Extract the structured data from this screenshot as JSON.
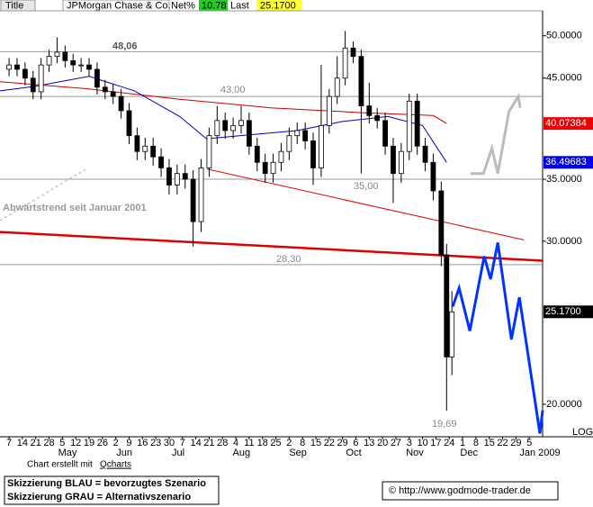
{
  "header": {
    "tab": "Title",
    "name": "JPMorgan Chase & Co.",
    "net_label": "Net%",
    "net_value": "10.78",
    "last_label": "Last",
    "last_value": "25.1700"
  },
  "chart_data": {
    "type": "candlestick",
    "log_scale": true,
    "xlim": [
      -3.4,
      200
    ],
    "ylim": [
      18.45,
      53.2
    ],
    "yticks": [
      {
        "value": 50,
        "label": "50.0000"
      },
      {
        "value": 45,
        "label": "45.0000"
      },
      {
        "value": 35,
        "label": "35.0000"
      },
      {
        "value": 30,
        "label": "30.0000"
      },
      {
        "value": 20,
        "label": "20.0000"
      }
    ],
    "xticks": [
      {
        "value": 0,
        "label": "7"
      },
      {
        "value": 5,
        "label": "14"
      },
      {
        "value": 10,
        "label": "21"
      },
      {
        "value": 15,
        "label": "28"
      },
      {
        "value": 20,
        "label": "5"
      },
      {
        "value": 25,
        "label": "12"
      },
      {
        "value": 30,
        "label": "19"
      },
      {
        "value": 35,
        "label": "26"
      },
      {
        "value": 40,
        "label": "2"
      },
      {
        "value": 45,
        "label": "9"
      },
      {
        "value": 50,
        "label": "16"
      },
      {
        "value": 55,
        "label": "23"
      },
      {
        "value": 60,
        "label": "30"
      },
      {
        "value": 65,
        "label": "7"
      },
      {
        "value": 70,
        "label": "14"
      },
      {
        "value": 75,
        "label": "21"
      },
      {
        "value": 80,
        "label": "28"
      },
      {
        "value": 85,
        "label": "4"
      },
      {
        "value": 90,
        "label": "11"
      },
      {
        "value": 95,
        "label": "18"
      },
      {
        "value": 100,
        "label": "25"
      },
      {
        "value": 105,
        "label": "2"
      },
      {
        "value": 110,
        "label": "8"
      },
      {
        "value": 115,
        "label": "15"
      },
      {
        "value": 120,
        "label": "22"
      },
      {
        "value": 125,
        "label": "29"
      },
      {
        "value": 130,
        "label": "6"
      },
      {
        "value": 135,
        "label": "13"
      },
      {
        "value": 140,
        "label": "20"
      },
      {
        "value": 145,
        "label": "27"
      },
      {
        "value": 150,
        "label": "3"
      },
      {
        "value": 155,
        "label": "10"
      },
      {
        "value": 160,
        "label": "17"
      },
      {
        "value": 165,
        "label": "24"
      },
      {
        "value": 170,
        "label": "1"
      },
      {
        "value": 175,
        "label": "8"
      },
      {
        "value": 180,
        "label": "15"
      },
      {
        "value": 185,
        "label": "22"
      },
      {
        "value": 190,
        "label": "29"
      },
      {
        "value": 195,
        "label": "5"
      }
    ],
    "month_labels": [
      {
        "value": 21.9,
        "label": "May"
      },
      {
        "value": 43.2,
        "label": "Jun"
      },
      {
        "value": 63.4,
        "label": "Jul"
      },
      {
        "value": 87.1,
        "label": "Aug"
      },
      {
        "value": 108.3,
        "label": "Sep"
      },
      {
        "value": 129.2,
        "label": "Oct"
      },
      {
        "value": 152.1,
        "label": "Nov"
      },
      {
        "value": 172.4,
        "label": "Dec"
      },
      {
        "value": 199,
        "label": "Jan 2009"
      }
    ],
    "candles": {
      "x": [
        0,
        3,
        6,
        9,
        12,
        15,
        18,
        21,
        24,
        27,
        30,
        33,
        36,
        39,
        42,
        45,
        48,
        51,
        54,
        57,
        60,
        63,
        66,
        69,
        72,
        75,
        78,
        81,
        84,
        87,
        90,
        93,
        96,
        99,
        102,
        105,
        108,
        111,
        114,
        117,
        120,
        123,
        126,
        129,
        132,
        135,
        138,
        141,
        144,
        147,
        150,
        153,
        156,
        159,
        162,
        164,
        166
      ],
      "open": [
        46.0,
        46.5,
        46.0,
        45.0,
        43.5,
        46.5,
        47.5,
        48.0,
        47.0,
        46.5,
        46.5,
        46.0,
        44.0,
        43.5,
        43.0,
        41.5,
        39.0,
        37.5,
        38.0,
        37.0,
        36.0,
        34.5,
        35.5,
        35.0,
        31.5,
        36.0,
        39.0,
        40.5,
        39.5,
        40.0,
        40.5,
        38.0,
        36.5,
        35.5,
        36.5,
        37.5,
        39.0,
        39.5,
        38.5,
        36.0,
        40.0,
        43.0,
        45.0,
        48.5,
        47.5,
        42.0,
        41.0,
        40.5,
        38.0,
        35.5,
        37.5,
        42.5,
        38.0,
        36.5,
        34.0,
        29.0,
        22.5
      ],
      "high": [
        47.3,
        47.3,
        46.8,
        45.8,
        47.3,
        48.3,
        49.8,
        48.8,
        47.8,
        47.3,
        47.3,
        46.8,
        44.8,
        44.3,
        43.8,
        42.3,
        39.8,
        38.8,
        38.8,
        37.8,
        36.8,
        36.3,
        36.3,
        35.8,
        36.8,
        39.8,
        42.0,
        41.3,
        40.8,
        42.0,
        41.3,
        38.8,
        37.3,
        37.3,
        38.3,
        39.8,
        40.3,
        40.3,
        39.3,
        46.5,
        43.8,
        47.5,
        50.6,
        49.3,
        48.3,
        44.5,
        41.8,
        41.3,
        38.8,
        38.3,
        43.3,
        43.3,
        38.8,
        37.3,
        34.8,
        29.8,
        26.5
      ],
      "low": [
        45.2,
        45.2,
        44.2,
        42.7,
        42.7,
        45.7,
        46.7,
        46.2,
        45.7,
        45.7,
        45.2,
        43.2,
        42.7,
        42.2,
        40.7,
        38.2,
        36.7,
        36.7,
        36.2,
        35.2,
        33.7,
        33.7,
        34.2,
        29.6,
        30.7,
        35.2,
        38.2,
        38.7,
        38.7,
        39.2,
        37.2,
        35.7,
        34.7,
        34.7,
        35.7,
        36.7,
        38.2,
        37.7,
        34.5,
        35.2,
        39.2,
        42.2,
        44.2,
        46.7,
        35.5,
        40.2,
        39.7,
        37.2,
        33.0,
        34.7,
        36.7,
        37.2,
        35.7,
        33.2,
        28.2,
        19.69,
        21.5
      ],
      "close": [
        46.5,
        46.0,
        45.0,
        43.5,
        46.5,
        47.5,
        48.0,
        47.0,
        46.5,
        46.5,
        46.0,
        44.0,
        43.5,
        43.0,
        41.5,
        39.0,
        37.5,
        38.0,
        37.0,
        36.0,
        34.5,
        35.5,
        35.0,
        31.5,
        36.0,
        39.0,
        40.5,
        39.5,
        40.0,
        40.5,
        38.0,
        36.5,
        35.5,
        36.5,
        37.5,
        39.0,
        39.5,
        38.5,
        36.0,
        40.0,
        43.0,
        45.0,
        48.5,
        47.5,
        42.0,
        41.0,
        40.5,
        38.0,
        35.5,
        37.5,
        42.5,
        38.0,
        36.5,
        34.0,
        29.0,
        22.5,
        25.17
      ],
      "last_label": "25.1700"
    },
    "lines": [
      {
        "color": "#cc0000",
        "width": 1,
        "x": [
          -3.4,
          30,
          64,
          98,
          132,
          159,
          164
        ],
        "values": [
          44.6,
          43.8,
          42.7,
          41.8,
          41.3,
          41.0,
          40.2
        ],
        "end_label": "40.07384"
      },
      {
        "color": "#0000bb",
        "width": 1,
        "x": [
          -3.4,
          10,
          30,
          47,
          64,
          74,
          91,
          108,
          125,
          142,
          155,
          164
        ],
        "values": [
          43.6,
          44.1,
          45.2,
          43.6,
          40.9,
          38.7,
          39.1,
          39.5,
          40.4,
          40.9,
          40.0,
          36.5
        ],
        "end_label": "36.49683"
      }
    ],
    "trendlines": [
      {
        "color": "#dd0000",
        "width": 1,
        "x": [
          74.2,
          193
        ],
        "values": [
          35.9,
          30.1
        ]
      },
      {
        "color": "#dd0000",
        "width": 2.5,
        "x": [
          -3.4,
          200
        ],
        "values": [
          30.7,
          28.58
        ]
      }
    ],
    "scenarios": [
      {
        "color": "#bbbbbb",
        "width": 3,
        "x": [
          173,
          177.8,
          181,
          183.2,
          187.4,
          190.9,
          191.6
        ],
        "values": [
          35.5,
          35.5,
          37.8,
          35.5,
          41.4,
          43.0,
          41.8
        ]
      },
      {
        "color": "#0033ff",
        "width": 3,
        "x": [
          166.3,
          168.7,
          172.7,
          178.1,
          180.5,
          183.2,
          188.3,
          191.3,
          199,
          200
        ],
        "values": [
          25.5,
          26.7,
          24.0,
          28.9,
          27.3,
          29.9,
          23.5,
          26.1,
          18.6,
          19.7
        ]
      }
    ],
    "levels": [
      {
        "value": 48.06,
        "label": "48,06"
      },
      {
        "value": 43,
        "label": "43,00"
      },
      {
        "value": 35,
        "label": "35,00"
      },
      {
        "value": 28.3,
        "label": "28,30"
      }
    ],
    "low_annotation": {
      "value": 19.69,
      "label": "19,69"
    },
    "trend_note": "Abwärtstrend seit Januar 2001",
    "scale_note": "LOG"
  },
  "footer": {
    "credit_prefix": "Chart erstellt mit",
    "credit_link": "Qcharts",
    "legend_blue": "Skizzierung BLAU = bevorzugtes Szenario",
    "legend_grey": "Skizzierung GRAU = Alternativszenario",
    "copyright": "© http://www.godmode-trader.de"
  }
}
